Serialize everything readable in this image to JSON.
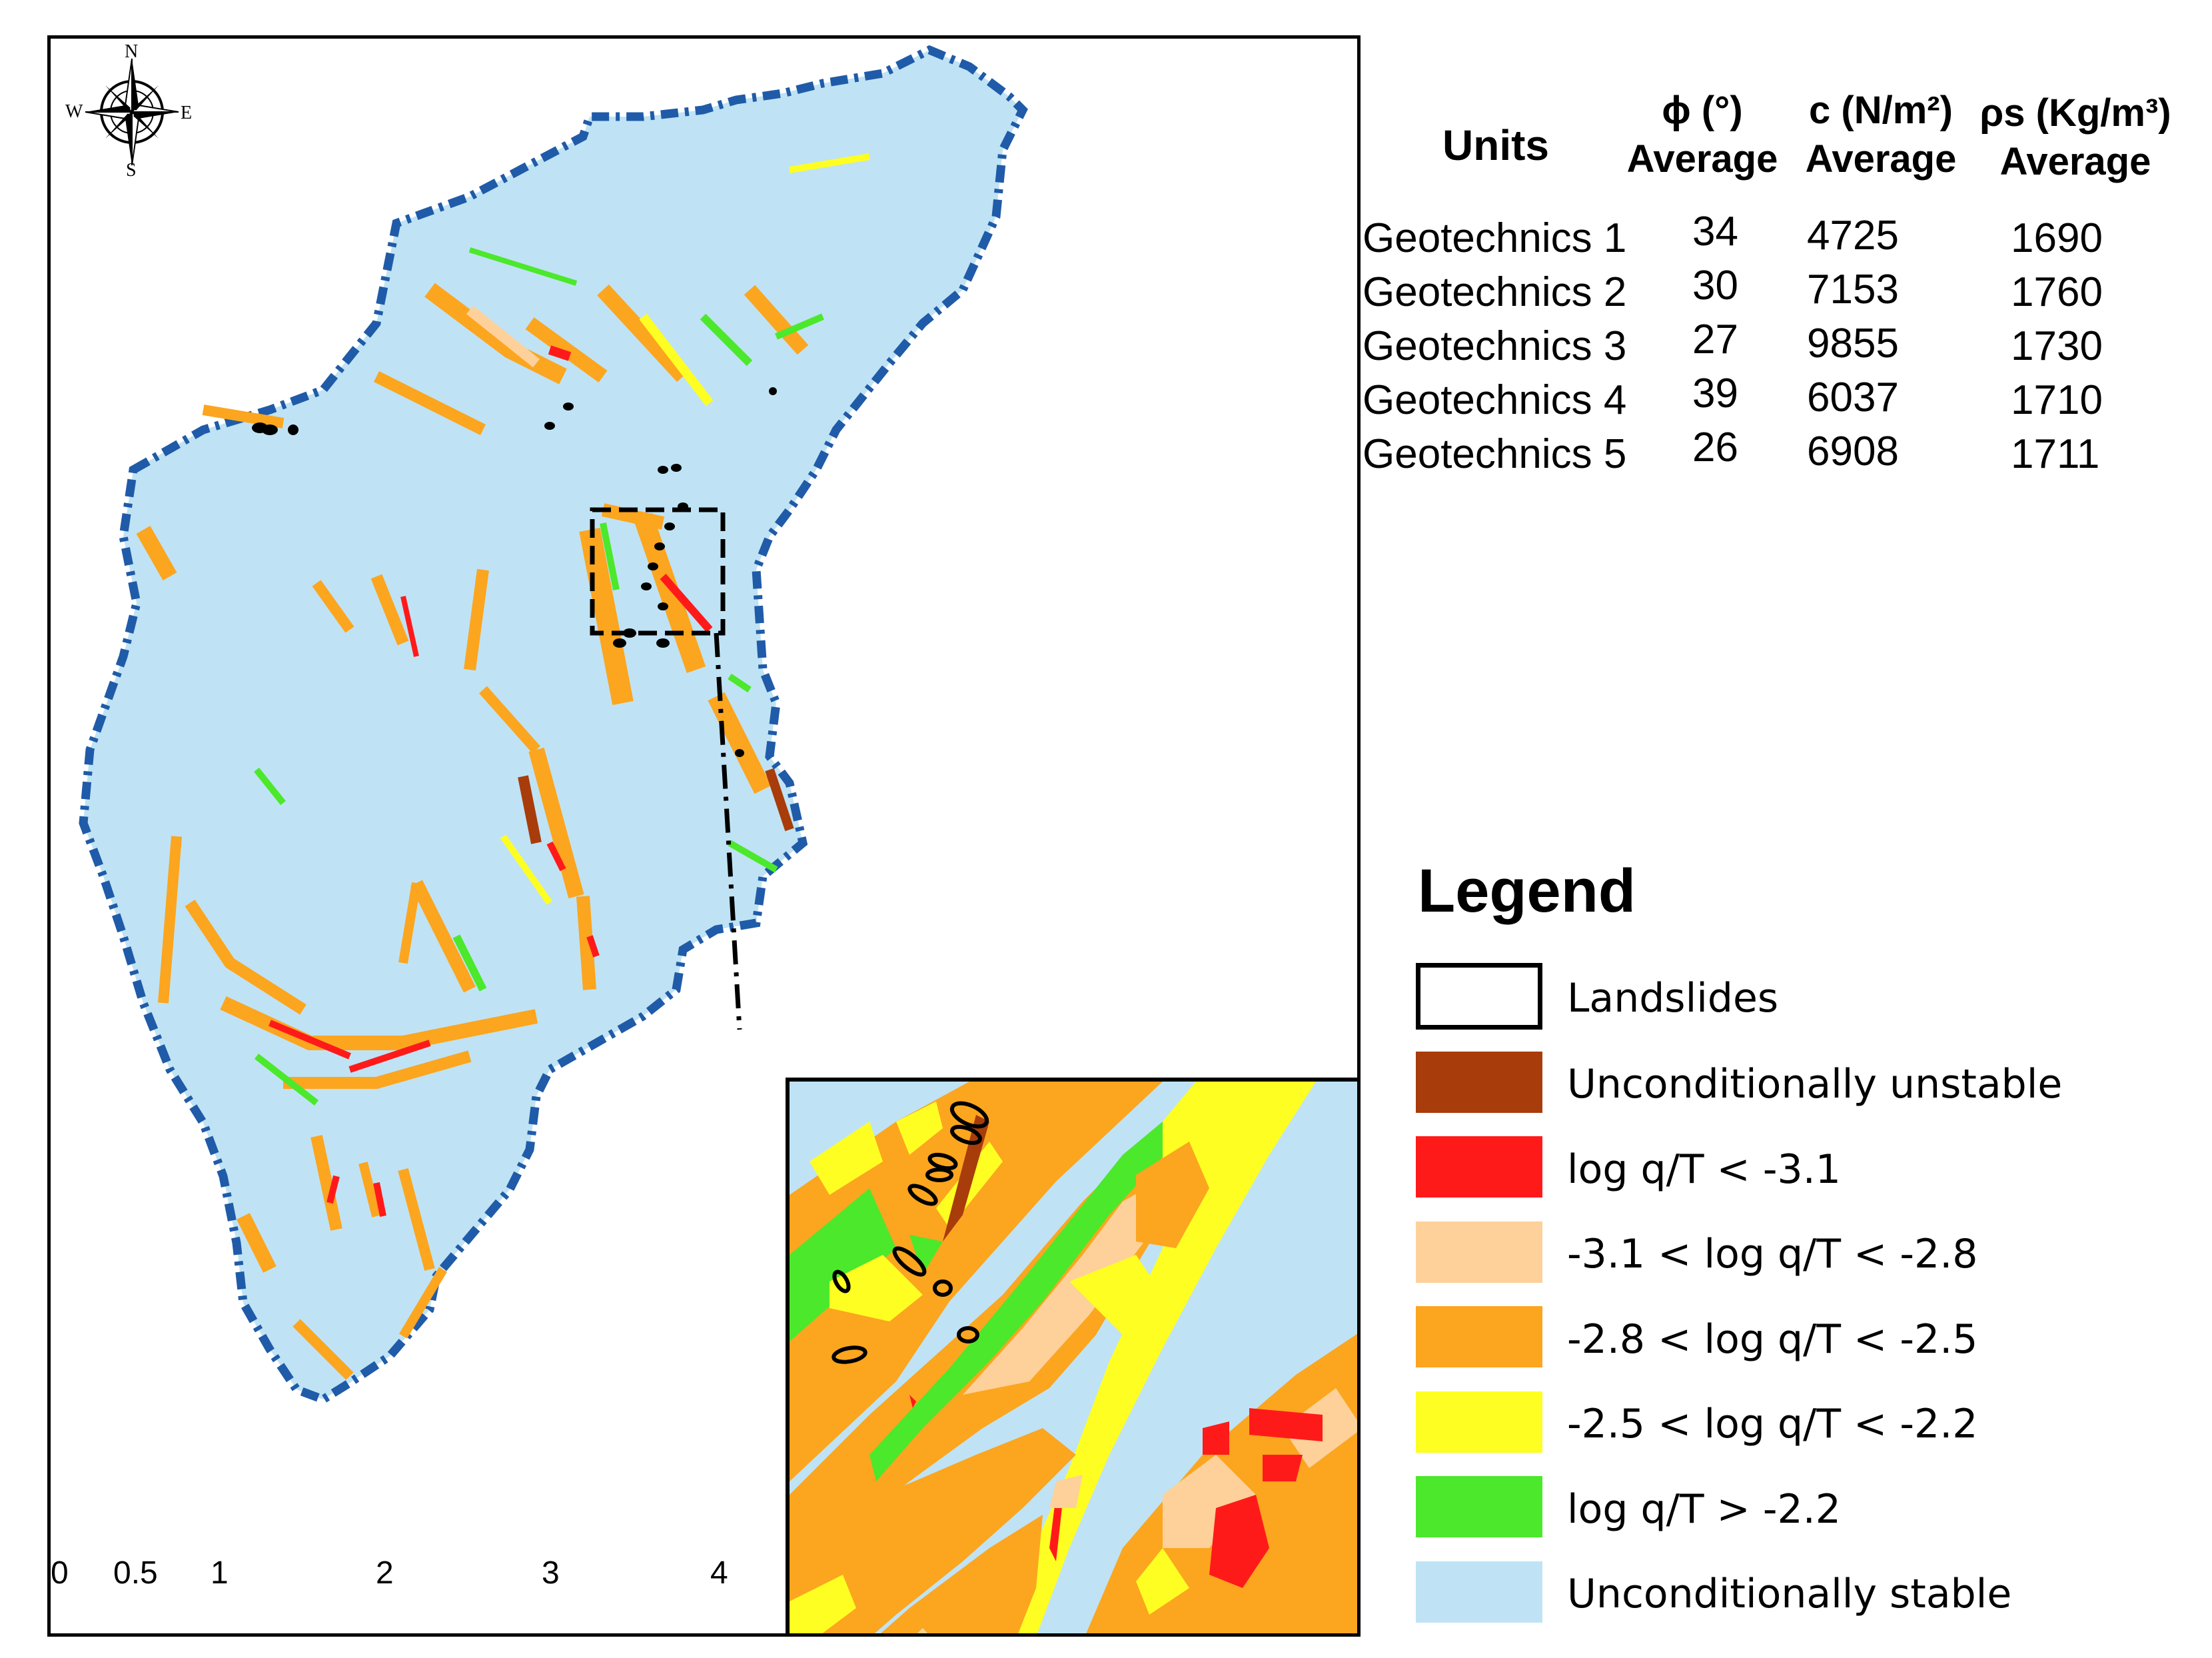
{
  "compass": {
    "n": "N",
    "s": "S",
    "e": "E",
    "w": "W"
  },
  "scale_bar": {
    "labels": [
      "0",
      "0.5",
      "1",
      "2",
      "3",
      "4"
    ]
  },
  "table": {
    "headers": {
      "units": "Units",
      "phi": "ϕ (°)",
      "phi_sub": "Average",
      "c": "c (N/m²)",
      "c_sub": "Average",
      "rho": "ρs (Kg/m³)",
      "rho_sub": "Average"
    },
    "rows": [
      {
        "unit": "Geotechnics 1",
        "phi": "34",
        "c": "4725",
        "rho": "1690"
      },
      {
        "unit": "Geotechnics 2",
        "phi": "30",
        "c": "7153",
        "rho": "1760"
      },
      {
        "unit": "Geotechnics 3",
        "phi": "27",
        "c": "9855",
        "rho": "1730"
      },
      {
        "unit": "Geotechnics 4",
        "phi": "39",
        "c": "6037",
        "rho": "1710"
      },
      {
        "unit": "Geotechnics 5",
        "phi": "26",
        "c": "6908",
        "rho": "1711"
      }
    ]
  },
  "legend": {
    "title": "Legend",
    "items": [
      {
        "label": "Landslides",
        "color": "#ffffff",
        "outline": true
      },
      {
        "label": "Unconditionally unstable",
        "color": "#a83c0a"
      },
      {
        "label": "log q/T < -3.1",
        "color": "#ff1a1a"
      },
      {
        "label": "-3.1 < log q/T < -2.8",
        "color": "#fdd199"
      },
      {
        "label": "-2.8 < log q/T < -2.5",
        "color": "#fca51f"
      },
      {
        "label": "-2.5 < log q/T < -2.2",
        "color": "#fefe22"
      },
      {
        "label": "log q/T > -2.2",
        "color": "#4ce82b"
      },
      {
        "label": "Unconditionally stable",
        "color": "#bfe3f4"
      }
    ]
  },
  "colors": {
    "stable": "#bfe3f4",
    "boundary": "#1f5ba8",
    "unstable": "#a83c0a",
    "red": "#ff1a1a",
    "light_orange": "#fdd199",
    "orange": "#fca51f",
    "yellow": "#fefe22",
    "green": "#4ce82b"
  }
}
